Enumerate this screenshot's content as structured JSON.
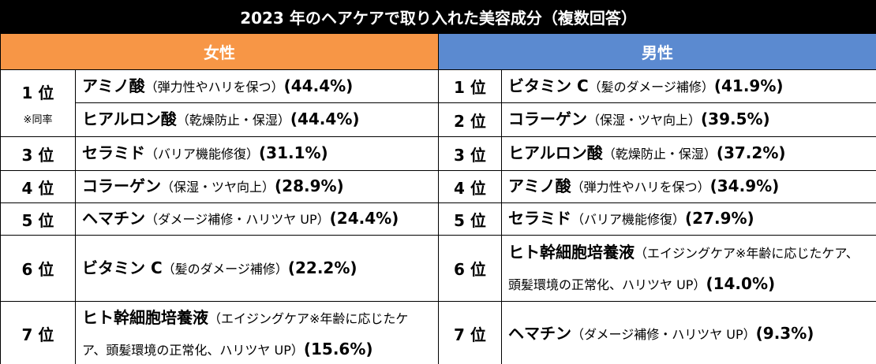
{
  "title": "2023 年のヘアケアで取り入れた美容成分（複数回答）",
  "female": {
    "header": "女性",
    "groups": [
      {
        "rank": "1 位",
        "note": "※同率",
        "items": [
          {
            "name": "アミノ酸",
            "note": "（弾力性やハリを保つ）",
            "pct": "(44.4%)"
          },
          {
            "name": "ヒアルロン酸",
            "note": "（乾燥防止・保湿）",
            "pct": "(44.4%)"
          }
        ]
      },
      {
        "rank": "3 位",
        "items": [
          {
            "name": "セラミド",
            "note": "（バリア機能修復）",
            "pct": "(31.1%)"
          }
        ]
      },
      {
        "rank": "4 位",
        "items": [
          {
            "name": "コラーゲン",
            "note": "（保湿・ツヤ向上）",
            "pct": "(28.9%)"
          }
        ]
      },
      {
        "rank": "5 位",
        "items": [
          {
            "name": "ヘマチン",
            "note": "（ダメージ補修・ハリツヤ UP）",
            "pct": "(24.4%)"
          }
        ]
      },
      {
        "rank": "6 位",
        "items": [
          {
            "name": "ビタミン C",
            "note": "（髪のダメージ補修）",
            "pct": "(22.2%)"
          }
        ]
      },
      {
        "rank": "7 位",
        "items": [
          {
            "name": "ヒト幹細胞培養液",
            "note": "（エイジングケア※年齢に応じたケア、頭髪環境の正常化、ハリツヤ UP）",
            "pct": "(15.6%)"
          }
        ]
      }
    ]
  },
  "male": {
    "header": "男性",
    "rows": [
      {
        "rank": "1 位",
        "name": "ビタミン C",
        "note": "（髪のダメージ補修）",
        "pct": "(41.9%)"
      },
      {
        "rank": "2 位",
        "name": "コラーゲン",
        "note": "（保湿・ツヤ向上）",
        "pct": "(39.5%)"
      },
      {
        "rank": "3 位",
        "name": "ヒアルロン酸",
        "note": "（乾燥防止・保湿）",
        "pct": "(37.2%)"
      },
      {
        "rank": "4 位",
        "name": "アミノ酸",
        "note": "（弾力性やハリを保つ）",
        "pct": "(34.9%)"
      },
      {
        "rank": "5 位",
        "name": "セラミド",
        "note": "（バリア機能修復）",
        "pct": "(27.9%)"
      },
      {
        "rank": "6 位",
        "name": "ヒト幹細胞培養液",
        "note": "（エイジングケア※年齢に応じたケア、頭髪環境の正常化、ハリツヤ UP）",
        "pct": "(14.0%)"
      },
      {
        "rank": "7 位",
        "name": "ヘマチン",
        "note": "（ダメージ補修・ハリツヤ UP）",
        "pct": "(9.3%)"
      }
    ]
  }
}
